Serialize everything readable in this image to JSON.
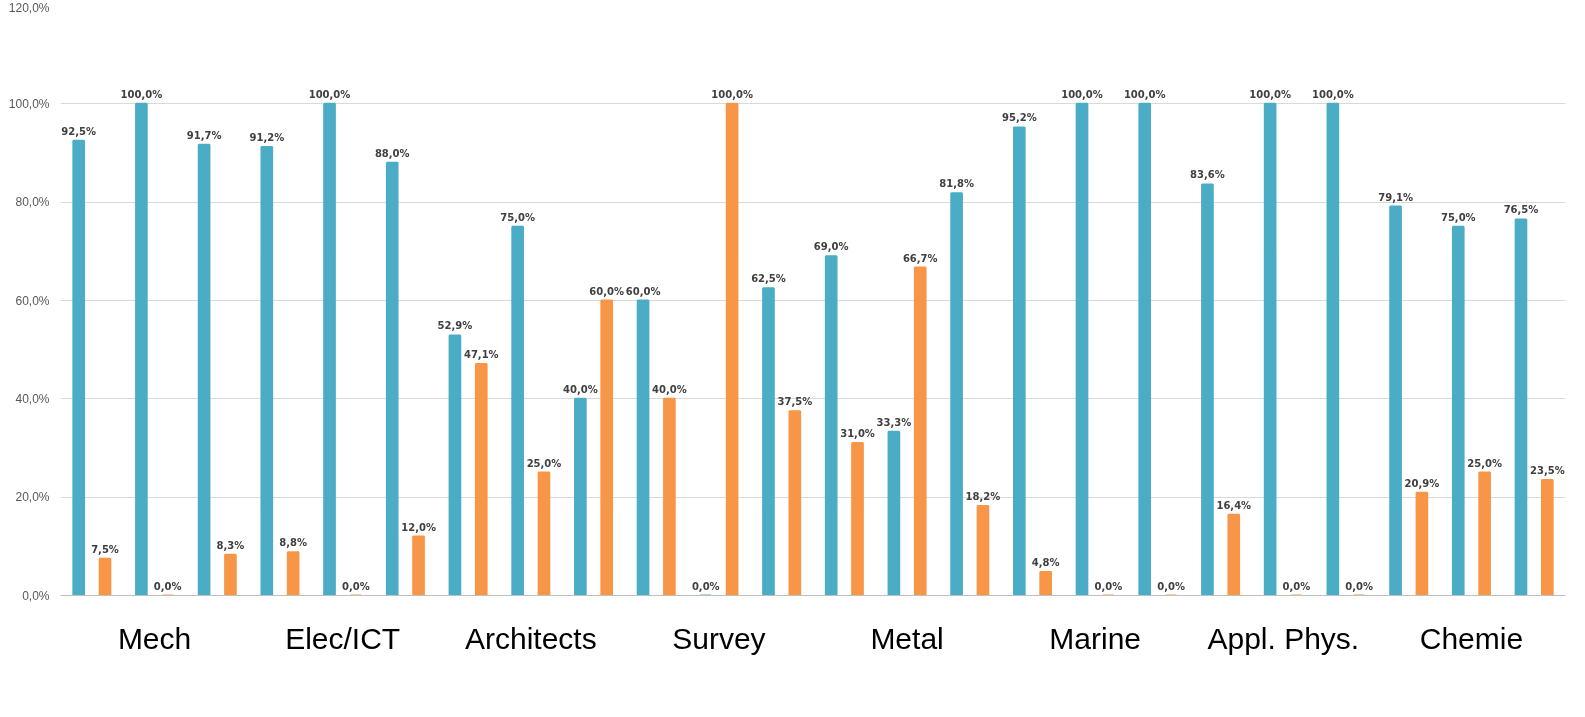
{
  "chart_data": {
    "type": "bar",
    "categories": [
      null,
      "Mech",
      null,
      null,
      "Elec/ICT",
      null,
      null,
      "Architects",
      null,
      null,
      "Survey",
      null,
      null,
      "Metal",
      null,
      null,
      "Marine",
      null,
      null,
      "Appl. Phys.",
      null,
      null,
      "Chemie",
      null
    ],
    "series": [
      {
        "color": "#4bacc6",
        "values": [
          92.5,
          100,
          91.7,
          91.2,
          100,
          88.0,
          52.9,
          75.0,
          40.0,
          60.0,
          0,
          62.5,
          69.0,
          33.3,
          81.8,
          95.2,
          100,
          100,
          83.6,
          100,
          100,
          79.1,
          75.0,
          76.5
        ],
        "value_labels": [
          "92,5%",
          "100,0%",
          "91,7%",
          "91,2%",
          "100,0%",
          "88,0%",
          "52,9%",
          "75,0%",
          "40,0%",
          "60,0%",
          "0,0%",
          "62,5%",
          "69,0%",
          "33,3%",
          "81,8%",
          "95,2%",
          "100,0%",
          "100,0%",
          "83,6%",
          "100,0%",
          "100,0%",
          "79,1%",
          "75,0%",
          "76,5%"
        ]
      },
      {
        "color": "#f79646",
        "values": [
          7.5,
          0,
          8.3,
          8.8,
          0,
          12.0,
          47.1,
          25.0,
          60.0,
          40.0,
          100,
          37.5,
          31.0,
          66.7,
          18.2,
          4.8,
          0,
          0,
          16.4,
          0,
          0,
          20.9,
          25.0,
          23.5
        ],
        "value_labels": [
          "7,5%",
          "0,0%",
          "8,3%",
          "8,8%",
          "0,0%",
          "12,0%",
          "47,1%",
          "25,0%",
          "60,0%",
          "40,0%",
          "100,0%",
          "37,5%",
          "31,0%",
          "66,7%",
          "18,2%",
          "4,8%",
          "0,0%",
          "0,0%",
          "16,4%",
          "0,0%",
          "0,0%",
          "20,9%",
          "25,0%",
          "23,5%"
        ]
      }
    ],
    "ylim": [
      0,
      120
    ],
    "yticks": [
      {
        "value": 0,
        "label": "0,0%"
      },
      {
        "value": 20,
        "label": "20,0%"
      },
      {
        "value": 40,
        "label": "40,0%"
      },
      {
        "value": 60,
        "label": "60,0%"
      },
      {
        "value": 80,
        "label": "80,0%"
      },
      {
        "value": 100,
        "label": "100,0%"
      },
      {
        "value": 120,
        "label": "120,0%"
      }
    ],
    "grid": "y"
  }
}
